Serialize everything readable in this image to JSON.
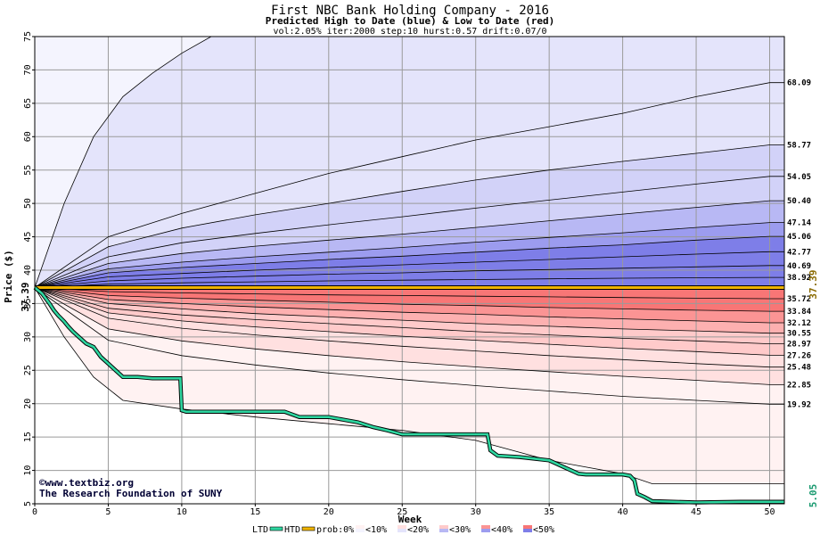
{
  "chart_data": {
    "type": "area",
    "title": "First NBC Bank Holding Company - 2016",
    "subtitle": "Predicted High to Date (blue) &  Low to Date (red)",
    "params": "vol:2.05% iter:2000 step:10 hurst:0.57 drift:0.07/0",
    "xlabel": "Week",
    "ylabel": "Price ($)",
    "xlim": [
      0,
      51
    ],
    "ylim": [
      5,
      75
    ],
    "x_ticks": [
      0,
      5,
      10,
      15,
      20,
      25,
      30,
      35,
      40,
      45,
      50
    ],
    "y_ticks": [
      5,
      10,
      15,
      20,
      25,
      30,
      35,
      40,
      45,
      50,
      55,
      60,
      65,
      70,
      75
    ],
    "grid": true,
    "start_price": "37.39",
    "start_value": 37.39,
    "current_price": "37.39",
    "current_value": 37.39,
    "last_price": "5.05",
    "credit": "©www.textbiz.org",
    "credit2": "The Research Foundation of SUNY",
    "legend": {
      "ltd": "LTD",
      "htd": "HTD",
      "prob": "prob:0%",
      "bins": [
        "<10%",
        "<20%",
        "<30%",
        "<40%",
        "<50%"
      ]
    },
    "colors": {
      "htd": "#2ed6a0",
      "current": "#f0b400",
      "blue_bands": [
        "#f4f4fe",
        "#e4e4fb",
        "#d2d2f8",
        "#b8b8f4",
        "#9c9cef",
        "#7e7ee8"
      ],
      "red_bands": [
        "#fff2f2",
        "#ffe0e0",
        "#ffcaca",
        "#fdb0b0",
        "#fb9494",
        "#f87676"
      ]
    },
    "high_curves": [
      {
        "label": "",
        "x": [
          0,
          2,
          4,
          6,
          8,
          10,
          12
        ],
        "y": [
          37.39,
          50,
          60,
          66,
          69.5,
          72.5,
          75
        ]
      },
      {
        "label": "68.09",
        "x": [
          0,
          5,
          10,
          15,
          20,
          25,
          30,
          35,
          40,
          45,
          50
        ],
        "y": [
          37.39,
          45,
          48.5,
          51.5,
          54.5,
          57,
          59.5,
          61.5,
          63.5,
          66,
          68.09
        ]
      },
      {
        "label": "58.77",
        "x": [
          0,
          5,
          10,
          15,
          20,
          25,
          30,
          35,
          40,
          45,
          50
        ],
        "y": [
          37.39,
          43.5,
          46.3,
          48.3,
          50,
          51.8,
          53.5,
          55,
          56.3,
          57.5,
          58.77
        ]
      },
      {
        "label": "54.05",
        "x": [
          0,
          5,
          10,
          15,
          20,
          25,
          30,
          35,
          40,
          45,
          50
        ],
        "y": [
          37.39,
          42,
          44.1,
          45.5,
          46.8,
          48,
          49.3,
          50.5,
          51.7,
          52.9,
          54.05
        ]
      },
      {
        "label": "50.40",
        "x": [
          0,
          5,
          10,
          15,
          20,
          25,
          30,
          35,
          40,
          45,
          50
        ],
        "y": [
          37.39,
          41,
          42.5,
          43.6,
          44.5,
          45.4,
          46.4,
          47.4,
          48.4,
          49.4,
          50.4
        ]
      },
      {
        "label": "47.14",
        "x": [
          0,
          5,
          10,
          15,
          20,
          25,
          30,
          35,
          40,
          45,
          50
        ],
        "y": [
          37.39,
          40.2,
          41.2,
          42,
          42.7,
          43.4,
          44.2,
          44.9,
          45.6,
          46.4,
          47.14
        ]
      },
      {
        "label": "45.06",
        "x": [
          0,
          5,
          10,
          15,
          20,
          25,
          30,
          35,
          40,
          45,
          50
        ],
        "y": [
          37.39,
          39.6,
          40.4,
          41,
          41.6,
          42.1,
          42.7,
          43.3,
          43.8,
          44.5,
          45.06
        ]
      },
      {
        "label": "42.77",
        "x": [
          0,
          5,
          10,
          15,
          20,
          25,
          30,
          35,
          40,
          45,
          50
        ],
        "y": [
          37.39,
          39,
          39.5,
          40,
          40.4,
          40.8,
          41.2,
          41.6,
          42,
          42.4,
          42.77
        ]
      },
      {
        "label": "40.69",
        "x": [
          0,
          5,
          10,
          15,
          20,
          25,
          30,
          35,
          40,
          45,
          50
        ],
        "y": [
          37.39,
          38.4,
          38.8,
          39.1,
          39.4,
          39.6,
          39.9,
          40.1,
          40.3,
          40.5,
          40.69
        ]
      },
      {
        "label": "38.92",
        "x": [
          0,
          5,
          10,
          15,
          20,
          25,
          30,
          35,
          40,
          45,
          50
        ],
        "y": [
          37.39,
          37.9,
          38.1,
          38.25,
          38.4,
          38.5,
          38.6,
          38.7,
          38.8,
          38.86,
          38.92
        ]
      }
    ],
    "low_curves": [
      {
        "label": "35.72",
        "x": [
          0,
          5,
          10,
          15,
          20,
          25,
          30,
          35,
          40,
          45,
          50
        ],
        "y": [
          37.39,
          36.8,
          36.6,
          36.45,
          36.3,
          36.2,
          36.1,
          36,
          35.9,
          35.8,
          35.72
        ]
      },
      {
        "label": "33.84",
        "x": [
          0,
          5,
          10,
          15,
          20,
          25,
          30,
          35,
          40,
          45,
          50
        ],
        "y": [
          37.39,
          36.2,
          35.8,
          35.5,
          35.2,
          34.9,
          34.7,
          34.4,
          34.2,
          34,
          33.84
        ]
      },
      {
        "label": "32.12",
        "x": [
          0,
          5,
          10,
          15,
          20,
          25,
          30,
          35,
          40,
          45,
          50
        ],
        "y": [
          37.39,
          35.6,
          35,
          34.5,
          34.1,
          33.7,
          33.4,
          33,
          32.7,
          32.4,
          32.12
        ]
      },
      {
        "label": "30.55",
        "x": [
          0,
          5,
          10,
          15,
          20,
          25,
          30,
          35,
          40,
          45,
          50
        ],
        "y": [
          37.39,
          35,
          34.2,
          33.5,
          33,
          32.5,
          32,
          31.6,
          31.2,
          30.9,
          30.55
        ]
      },
      {
        "label": "28.97",
        "x": [
          0,
          5,
          10,
          15,
          20,
          25,
          30,
          35,
          40,
          45,
          50
        ],
        "y": [
          37.39,
          34.3,
          33.3,
          32.6,
          32,
          31.4,
          30.8,
          30.3,
          29.8,
          29.4,
          28.97
        ]
      },
      {
        "label": "27.26",
        "x": [
          0,
          5,
          10,
          15,
          20,
          25,
          30,
          35,
          40,
          45,
          50
        ],
        "y": [
          37.39,
          33.6,
          32.4,
          31.5,
          30.8,
          30.1,
          29.5,
          28.9,
          28.3,
          27.8,
          27.26
        ]
      },
      {
        "label": "25.48",
        "x": [
          0,
          5,
          10,
          15,
          20,
          25,
          30,
          35,
          40,
          45,
          50
        ],
        "y": [
          37.39,
          32.8,
          31.3,
          30.3,
          29.4,
          28.6,
          27.9,
          27.2,
          26.6,
          26,
          25.48
        ]
      },
      {
        "label": "22.85",
        "x": [
          0,
          5,
          10,
          15,
          20,
          25,
          30,
          35,
          40,
          45,
          50
        ],
        "y": [
          37.39,
          31.2,
          29.4,
          28.2,
          27.2,
          26.3,
          25.5,
          24.8,
          24.1,
          23.5,
          22.85
        ]
      },
      {
        "label": "19.92",
        "x": [
          0,
          5,
          10,
          15,
          20,
          25,
          30,
          35,
          40,
          45,
          50
        ],
        "y": [
          37.39,
          29.5,
          27.2,
          25.8,
          24.6,
          23.6,
          22.7,
          21.9,
          21.1,
          20.5,
          19.92
        ]
      },
      {
        "label": "",
        "x": [
          0,
          2,
          4,
          6,
          10,
          15,
          20,
          25,
          30,
          35,
          40,
          42,
          45,
          50
        ],
        "y": [
          37.39,
          30,
          24,
          20.5,
          19.2,
          18,
          17,
          16,
          14.5,
          11.5,
          9.5,
          8,
          8,
          8
        ]
      }
    ],
    "htd_series": {
      "x": [
        0,
        0.5,
        1,
        1.3,
        1.6,
        2,
        2.3,
        2.6,
        3,
        3.5,
        4,
        4.5,
        5,
        5.5,
        6,
        7,
        8,
        9,
        9.9,
        10,
        10.3,
        12,
        15,
        17,
        18,
        20,
        21,
        22,
        23,
        24,
        25,
        27,
        29,
        30,
        30.8,
        31,
        31.5,
        33,
        35,
        35.5,
        36.5,
        37,
        37.5,
        38,
        40,
        40.5,
        40.8,
        41,
        41.5,
        42,
        45,
        48,
        51
      ],
      "y": [
        37.39,
        36.5,
        35,
        34,
        33.2,
        32.3,
        31.5,
        30.8,
        30,
        29,
        28.5,
        27,
        26,
        25,
        24,
        24,
        23.8,
        23.8,
        23.8,
        19,
        18.8,
        18.8,
        18.8,
        18.8,
        18,
        18,
        17.6,
        17.2,
        16.5,
        16,
        15.4,
        15.4,
        15.4,
        15.4,
        15.4,
        13,
        12.2,
        12,
        11.5,
        11,
        10,
        9.5,
        9.4,
        9.4,
        9.4,
        9.2,
        8.5,
        6.5,
        6,
        5.4,
        5.2,
        5.3,
        5.3
      ]
    }
  }
}
